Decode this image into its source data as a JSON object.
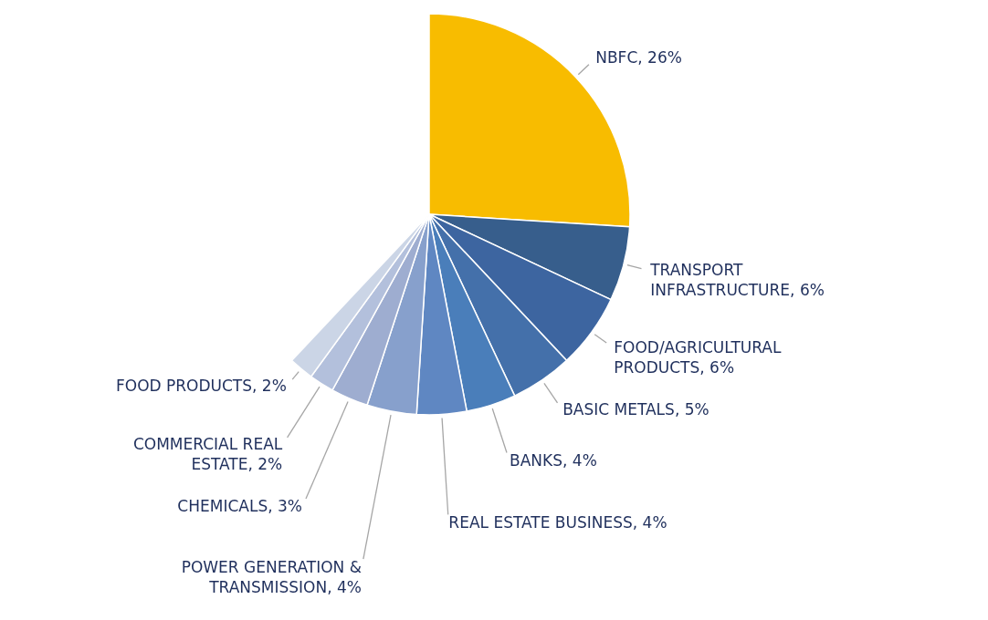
{
  "chart_data": {
    "type": "pie",
    "categories": [
      "NBFC",
      "TRANSPORT INFRASTRUCTURE",
      "FOOD/AGRICULTURAL PRODUCTS",
      "BASIC METALS",
      "BANKS",
      "REAL ESTATE BUSINESS",
      "POWER GENERATION & TRANSMISSION",
      "CHEMICALS",
      "COMMERCIAL REAL ESTATE",
      "FOOD PRODUCTS"
    ],
    "values": [
      26,
      6,
      6,
      5,
      4,
      4,
      4,
      3,
      2,
      2
    ],
    "value_labels": [
      "26%",
      "6%",
      "6%",
      "5%",
      "4%",
      "4%",
      "4%",
      "3%",
      "2%",
      "2%"
    ],
    "colors": [
      "#f8bc00",
      "#375e8c",
      "#3d65a0",
      "#4470aa",
      "#4a7eba",
      "#5f87c2",
      "#87a0cc",
      "#9eadd0",
      "#b3c0dc",
      "#cbd5e6"
    ]
  }
}
